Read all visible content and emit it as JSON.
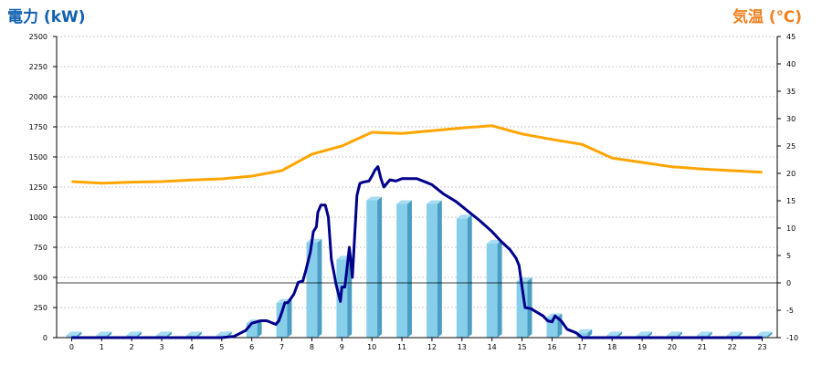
{
  "chart_data": {
    "type": "bar",
    "left_axis_title": "電力 (kW)",
    "right_axis_title": "気温 (℃)",
    "categories": [
      "0",
      "1",
      "2",
      "3",
      "4",
      "5",
      "6",
      "7",
      "8",
      "9",
      "10",
      "11",
      "12",
      "13",
      "14",
      "15",
      "16",
      "17",
      "18",
      "19",
      "20",
      "21",
      "22",
      "23"
    ],
    "ylim_left": [
      0,
      2500
    ],
    "yticks_left": [
      0,
      250,
      500,
      750,
      1000,
      1250,
      1500,
      1750,
      2000,
      2250,
      2500
    ],
    "ylim_right": [
      -10,
      45
    ],
    "yticks_right": [
      -10,
      -5,
      0,
      5,
      10,
      15,
      20,
      25,
      30,
      35,
      40,
      45
    ],
    "grid": true,
    "colors": {
      "bar": "#87ceeb",
      "bar_side": "#4a9ec4",
      "power_line": "#00008b",
      "temp_line": "#ffa500",
      "left_title": "#1060b0",
      "right_title": "#f08020"
    },
    "bars": {
      "axis": "left",
      "values": [
        20,
        20,
        20,
        20,
        20,
        20,
        120,
        290,
        790,
        650,
        1140,
        1110,
        1110,
        990,
        780,
        470,
        170,
        40,
        20,
        20,
        20,
        20,
        20,
        20
      ]
    },
    "power_line": {
      "axis": "left",
      "x": [
        0,
        1,
        2,
        3,
        4,
        5,
        5.4,
        5.8,
        6.0,
        6.3,
        6.5,
        6.8,
        6.9,
        7.0,
        7.1,
        7.2,
        7.4,
        7.55,
        7.7,
        7.8,
        7.95,
        8.05,
        8.15,
        8.2,
        8.3,
        8.45,
        8.55,
        8.65,
        8.75,
        8.8,
        8.9,
        8.95,
        9.0,
        9.1,
        9.25,
        9.35,
        9.5,
        9.6,
        9.7,
        9.9,
        10.0,
        10.1,
        10.2,
        10.3,
        10.4,
        10.6,
        10.8,
        11.0,
        11.2,
        11.5,
        11.8,
        12.0,
        12.4,
        12.8,
        13.2,
        13.6,
        14.0,
        14.3,
        14.6,
        14.8,
        14.9,
        15.0,
        15.1,
        15.3,
        15.5,
        15.7,
        15.85,
        16.0,
        16.1,
        16.3,
        16.5,
        16.8,
        17.0,
        18,
        19,
        20,
        21,
        22,
        23
      ],
      "y": [
        0,
        0,
        0,
        0,
        0,
        0,
        10,
        60,
        120,
        140,
        140,
        110,
        140,
        210,
        290,
        290,
        360,
        460,
        470,
        560,
        710,
        880,
        920,
        1040,
        1100,
        1100,
        1000,
        650,
        520,
        450,
        350,
        300,
        420,
        420,
        750,
        500,
        1180,
        1280,
        1290,
        1300,
        1340,
        1390,
        1420,
        1320,
        1250,
        1310,
        1300,
        1320,
        1320,
        1320,
        1290,
        1270,
        1190,
        1130,
        1050,
        970,
        880,
        800,
        730,
        660,
        600,
        420,
        250,
        240,
        210,
        180,
        140,
        130,
        180,
        140,
        70,
        40,
        0,
        0,
        0,
        0,
        0,
        0,
        0
      ]
    },
    "temp_line": {
      "axis": "right",
      "x": [
        0,
        1,
        2,
        3,
        4,
        5,
        6,
        7,
        8,
        9,
        10,
        11,
        12,
        13,
        14,
        15,
        16,
        17,
        18,
        19,
        20,
        21,
        22,
        23
      ],
      "y": [
        18.5,
        18.2,
        18.4,
        18.5,
        18.8,
        19.0,
        19.5,
        20.5,
        23.5,
        25,
        27.5,
        27.3,
        27.8,
        28.3,
        28.7,
        27.2,
        26.2,
        25.3,
        22.8,
        22,
        21.2,
        20.8,
        20.5,
        20.2
      ]
    }
  }
}
